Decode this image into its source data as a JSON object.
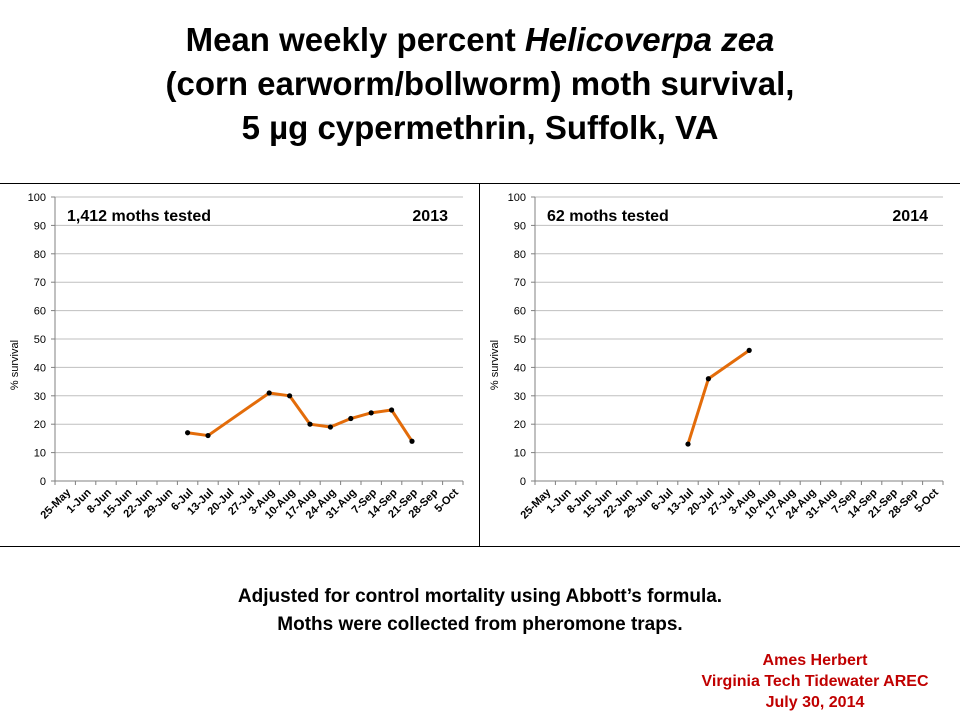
{
  "title": {
    "line1_prefix": "Mean weekly percent ",
    "line1_italic": "Helicoverpa zea",
    "line2": "(corn earworm/bollworm) moth survival,",
    "line3": "5 µg cypermethrin, Suffolk, VA"
  },
  "colors": {
    "series": "#e36c0a",
    "marker": "#000000",
    "grid": "#bfbfbf",
    "credit": "#c00000"
  },
  "chart_data": [
    {
      "type": "line",
      "year": "2013",
      "annotation": "1,412 moths tested",
      "ylabel": "% survival",
      "xlabel": "",
      "ylim": [
        0,
        100
      ],
      "yticks": [
        0,
        10,
        20,
        30,
        40,
        50,
        60,
        70,
        80,
        90,
        100
      ],
      "grid": true,
      "categories": [
        "25-May",
        "1-Jun",
        "8-Jun",
        "15-Jun",
        "22-Jun",
        "29-Jun",
        "6-Jul",
        "13-Jul",
        "20-Jul",
        "27-Jul",
        "3-Aug",
        "10-Aug",
        "17-Aug",
        "24-Aug",
        "31-Aug",
        "7-Sep",
        "14-Sep",
        "21-Sep",
        "28-Sep",
        "5-Oct"
      ],
      "series": [
        {
          "name": "2013",
          "values": [
            null,
            null,
            null,
            null,
            null,
            null,
            17,
            16,
            null,
            null,
            31,
            30,
            20,
            19,
            22,
            24,
            25,
            14,
            null,
            null
          ]
        }
      ]
    },
    {
      "type": "line",
      "year": "2014",
      "annotation": "62 moths tested",
      "ylabel": "% survival",
      "xlabel": "",
      "ylim": [
        0,
        100
      ],
      "yticks": [
        0,
        10,
        20,
        30,
        40,
        50,
        60,
        70,
        80,
        90,
        100
      ],
      "grid": true,
      "categories": [
        "25-May",
        "1-Jun",
        "8-Jun",
        "15-Jun",
        "22-Jun",
        "29-Jun",
        "6-Jul",
        "13-Jul",
        "20-Jul",
        "27-Jul",
        "3-Aug",
        "10-Aug",
        "17-Aug",
        "24-Aug",
        "31-Aug",
        "7-Sep",
        "14-Sep",
        "21-Sep",
        "28-Sep",
        "5-Oct"
      ],
      "series": [
        {
          "name": "2014",
          "values": [
            null,
            null,
            null,
            null,
            null,
            null,
            null,
            13,
            36,
            null,
            46,
            null,
            null,
            null,
            null,
            null,
            null,
            null,
            null,
            null
          ]
        }
      ]
    }
  ],
  "footnote": {
    "line1": "Adjusted for control mortality using Abbott’s formula.",
    "line2": "Moths were collected from pheromone traps."
  },
  "credit": {
    "name": "Ames Herbert",
    "org": "Virginia Tech Tidewater AREC",
    "date": "July 30, 2014"
  }
}
